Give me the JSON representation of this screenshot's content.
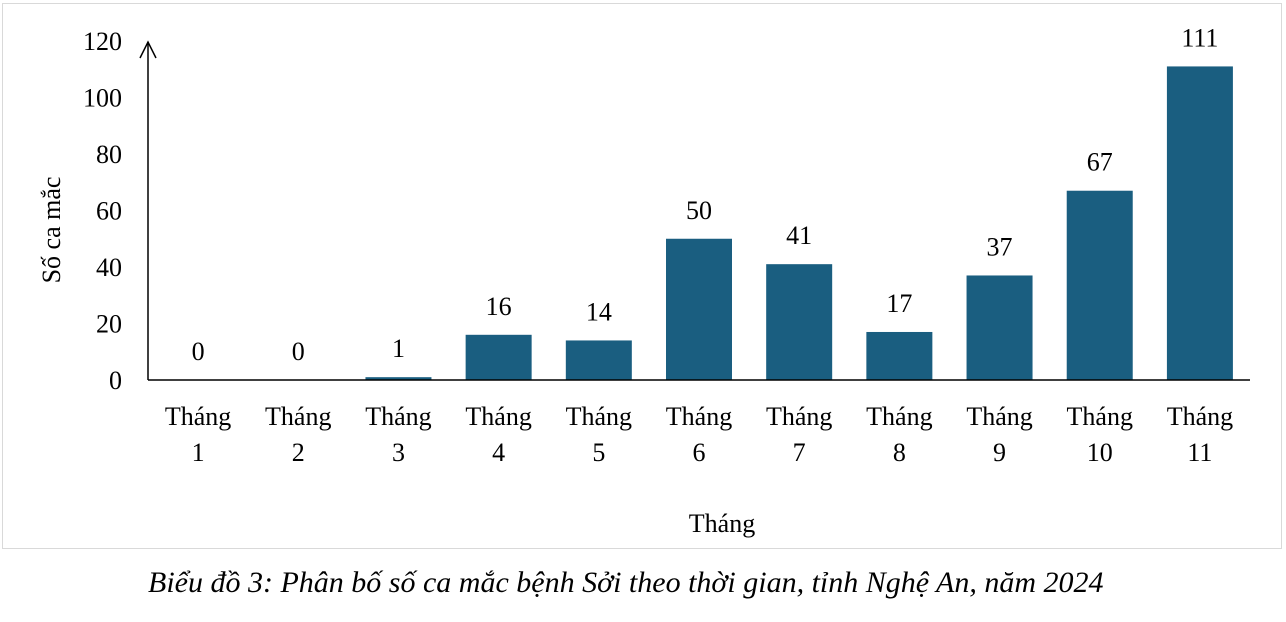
{
  "chart_data": {
    "type": "bar",
    "categories": [
      [
        "Tháng",
        "1"
      ],
      [
        "Tháng",
        "2"
      ],
      [
        "Tháng",
        "3"
      ],
      [
        "Tháng",
        "4"
      ],
      [
        "Tháng",
        "5"
      ],
      [
        "Tháng",
        "6"
      ],
      [
        "Tháng",
        "7"
      ],
      [
        "Tháng",
        "8"
      ],
      [
        "Tháng",
        "9"
      ],
      [
        "Tháng",
        "10"
      ],
      [
        "Tháng",
        "11"
      ]
    ],
    "values": [
      0,
      0,
      1,
      16,
      14,
      50,
      41,
      17,
      37,
      67,
      111
    ],
    "xlabel": "Tháng",
    "ylabel": "Số ca mắc",
    "ylim": [
      0,
      120
    ],
    "yticks": [
      0,
      20,
      40,
      60,
      80,
      100,
      120
    ],
    "grid": false,
    "bar_color": "#1a5e80",
    "data_labels": true
  },
  "caption": "Biểu đồ 3: Phân bố số ca mắc bệnh Sởi theo thời gian, tỉnh Nghệ An, năm 2024"
}
